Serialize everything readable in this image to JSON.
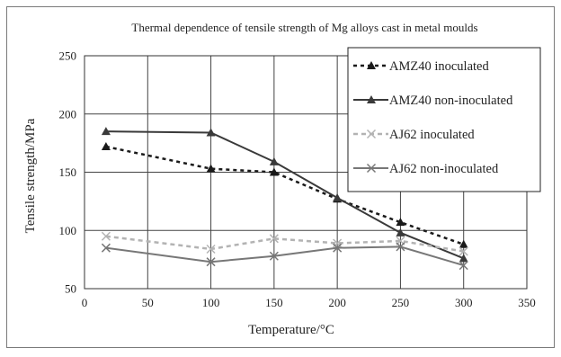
{
  "chart_data": {
    "type": "line",
    "title": "Thermal dependence of tensile strength of Mg alloys cast in metal moulds",
    "xlabel": "Temperature/°C",
    "ylabel": "Tensile strength/MPa",
    "xlim": [
      0,
      350
    ],
    "ylim": [
      50,
      250
    ],
    "x_ticks": [
      0,
      50,
      100,
      150,
      200,
      250,
      300,
      350
    ],
    "y_ticks": [
      50,
      100,
      150,
      200,
      250
    ],
    "grid": true,
    "legend_position": "top-right",
    "series": [
      {
        "name": "AMZ40 inoculated",
        "marker": "triangle",
        "line_style": "dotted",
        "color": "#1a1a1a",
        "x": [
          17,
          100,
          150,
          200,
          250,
          300
        ],
        "values": [
          172,
          153,
          150,
          127,
          107,
          88
        ]
      },
      {
        "name": "AMZ40 non-inoculated",
        "marker": "triangle",
        "line_style": "solid",
        "color": "#3a3a3a",
        "x": [
          17,
          100,
          150,
          200,
          250,
          300
        ],
        "values": [
          185,
          184,
          159,
          128,
          98,
          76
        ]
      },
      {
        "name": "AJ62 inoculated",
        "marker": "x",
        "line_style": "dashed",
        "color": "#b3b3b3",
        "x": [
          17,
          100,
          150,
          200,
          250,
          300
        ],
        "values": [
          95,
          84,
          93,
          89,
          91,
          82
        ]
      },
      {
        "name": "AJ62 non-inoculated",
        "marker": "x",
        "line_style": "solid",
        "color": "#777777",
        "x": [
          17,
          100,
          150,
          200,
          250,
          300
        ],
        "values": [
          85,
          73,
          78,
          85,
          86,
          70
        ]
      }
    ]
  }
}
